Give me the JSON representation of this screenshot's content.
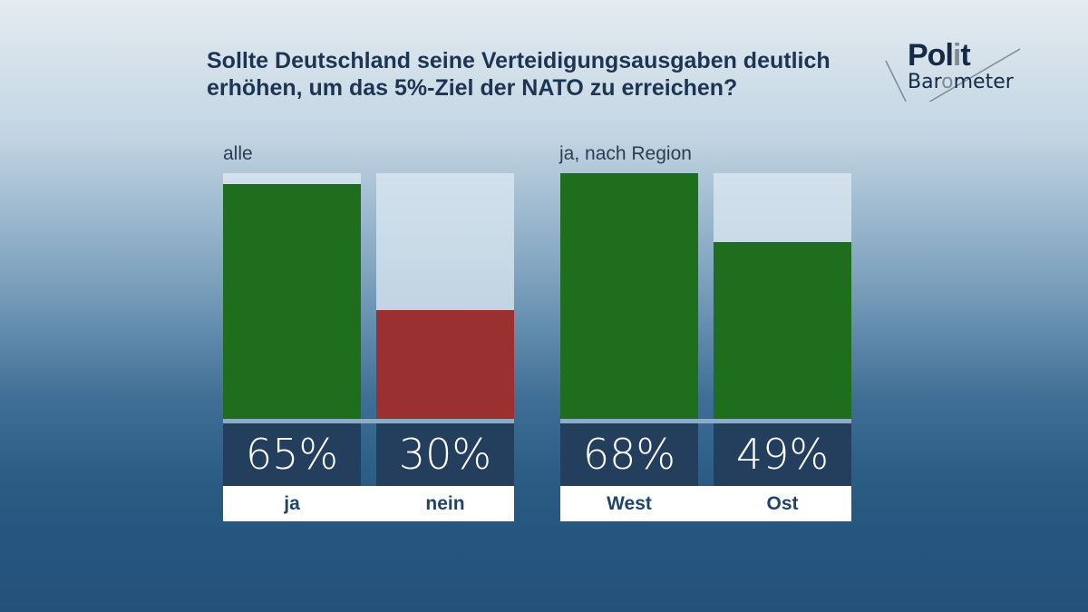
{
  "logo": {
    "line1": "Polit",
    "line2": "Barometer"
  },
  "chart_data": [
    {
      "type": "bar",
      "title": "Sollte Deutschland seine Verteidigungsausgaben deutlich erhöhen, um das 5%-Ziel der NATO zu erreichen?",
      "subtitle": "alle",
      "categories": [
        "ja",
        "nein"
      ],
      "values": [
        65,
        30
      ],
      "value_labels": [
        "65%",
        "30%"
      ],
      "colors": [
        "#1e6e1e",
        "#9b3030"
      ],
      "ylim": [
        0,
        68
      ],
      "grid": false
    },
    {
      "type": "bar",
      "subtitle": "ja, nach Region",
      "categories": [
        "West",
        "Ost"
      ],
      "values": [
        68,
        49
      ],
      "value_labels": [
        "68%",
        "49%"
      ],
      "colors": [
        "#1e6e1e",
        "#1e6e1e"
      ],
      "ylim": [
        0,
        68
      ],
      "grid": false
    }
  ]
}
